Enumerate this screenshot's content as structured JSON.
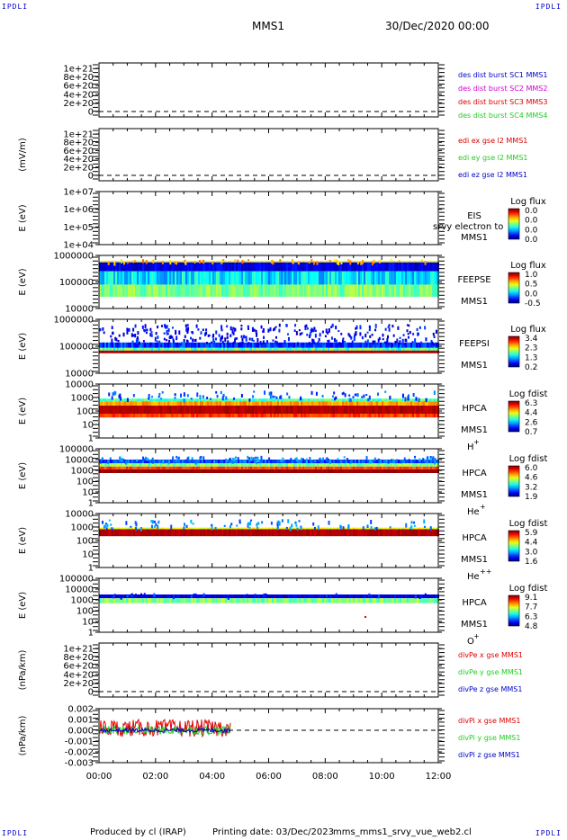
{
  "corners": {
    "tl": "IPDLI",
    "tr": "IPDLI",
    "bl": "IPDLI",
    "br": "IPDLI"
  },
  "header": {
    "spacecraft": "MMS1",
    "datetime": "30/Dec/2020 00:00"
  },
  "footer": {
    "producer": "Produced by cl (IRAP)",
    "printing": "Printing date: 03/Dec/2023",
    "script": "mms_mms1_srvy_vue_web2.cl"
  },
  "colors": {
    "blue": "#0000cc",
    "magenta": "#d000d0",
    "red": "#dd0000",
    "green": "#22cc22"
  },
  "chart_data": [
    {
      "id": "p1",
      "type": "line",
      "ylabel": "",
      "yticks": [
        "1e+21",
        "8e+20",
        "6e+20",
        "4e+20",
        "2e+20",
        "0"
      ],
      "dashed_zero": true,
      "legend": [
        {
          "text": "des dist burst SC1 MMS1",
          "color": "#0000cc"
        },
        {
          "text": "des dist burst SC2 MMS2",
          "color": "#d000d0"
        },
        {
          "text": "des dist burst SC3 MMS3",
          "color": "#dd0000"
        },
        {
          "text": "des dist burst SC4 MMS4",
          "color": "#22cc22"
        }
      ],
      "series": []
    },
    {
      "id": "p2",
      "type": "line",
      "ylabel": "(mV/m)",
      "yticks": [
        "1e+21",
        "8e+20",
        "6e+20",
        "4e+20",
        "2e+20",
        "0"
      ],
      "dashed_zero": true,
      "legend": [
        {
          "text": "edi ex gse l2 MMS1",
          "color": "#dd0000"
        },
        {
          "text": "edi ey gse l2 MMS1",
          "color": "#22cc22"
        },
        {
          "text": "edi ez gse l2 MMS1",
          "color": "#0000cc"
        }
      ],
      "series": []
    },
    {
      "id": "p3",
      "type": "heatmap",
      "ylabel": "E (eV)",
      "yticks": [
        "1e+07",
        "1e+06",
        "1e+05",
        "1e+04"
      ],
      "labels": [
        "EIS",
        "MMS1"
      ],
      "overlay": "srvy electron to",
      "cbar": {
        "title": "Log flux",
        "ticks": [
          "0.0",
          "0.0",
          "0.0",
          "0.0"
        ]
      },
      "fill": "none"
    },
    {
      "id": "p4",
      "type": "heatmap",
      "ylabel": "E (eV)",
      "yticks": [
        "1000000",
        "100000",
        "10000"
      ],
      "labels": [
        "FEEPSE",
        "MMS1"
      ],
      "cbar": {
        "title": "Log flux",
        "ticks": [
          "1.0",
          "0.5",
          "0.0",
          "-0.5"
        ]
      },
      "fill": "feeps_e"
    },
    {
      "id": "p5",
      "type": "heatmap",
      "ylabel": "E (eV)",
      "yticks": [
        "1000000",
        "100000",
        "10000"
      ],
      "labels": [
        "FEEPSI",
        "MMS1"
      ],
      "cbar": {
        "title": "Log flux",
        "ticks": [
          "3.4",
          "2.3",
          "1.3",
          "0.2"
        ]
      },
      "fill": "feeps_i"
    },
    {
      "id": "p6",
      "type": "heatmap",
      "ylabel": "E (eV)",
      "yticks": [
        "10000",
        "1000",
        "100",
        "10",
        "1"
      ],
      "labels": [
        "HPCA",
        "MMS1"
      ],
      "species": "H",
      "charge": "+",
      "cbar": {
        "title": "Log fdist",
        "ticks": [
          "6.3",
          "4.4",
          "2.6",
          "0.7"
        ]
      },
      "fill": "hpca_h"
    },
    {
      "id": "p7",
      "type": "heatmap",
      "ylabel": "E (eV)",
      "yticks": [
        "100000",
        "10000",
        "1000",
        "100",
        "10",
        "1"
      ],
      "labels": [
        "HPCA",
        "MMS1"
      ],
      "species": "He",
      "charge": "+",
      "cbar": {
        "title": "Log fdist",
        "ticks": [
          "6.0",
          "4.6",
          "3.2",
          "1.9"
        ]
      },
      "fill": "hpca_he"
    },
    {
      "id": "p8",
      "type": "heatmap",
      "ylabel": "E (eV)",
      "yticks": [
        "10000",
        "1000",
        "100",
        "10",
        "1"
      ],
      "labels": [
        "HPCA",
        "MMS1"
      ],
      "species": "He",
      "charge": "++",
      "cbar": {
        "title": "Log fdist",
        "ticks": [
          "5.9",
          "4.4",
          "3.0",
          "1.6"
        ]
      },
      "fill": "hpca_he2"
    },
    {
      "id": "p9",
      "type": "heatmap",
      "ylabel": "E (eV)",
      "yticks": [
        "100000",
        "10000",
        "1000",
        "100",
        "10",
        "1"
      ],
      "labels": [
        "HPCA",
        "MMS1"
      ],
      "species": "O",
      "charge": "+",
      "cbar": {
        "title": "Log fdist",
        "ticks": [
          "9.1",
          "7.7",
          "6.3",
          "4.8"
        ]
      },
      "fill": "hpca_o"
    },
    {
      "id": "p10",
      "type": "line",
      "ylabel": "(nPa/km)",
      "yticks": [
        "1e+21",
        "8e+20",
        "6e+20",
        "4e+20",
        "2e+20",
        "0"
      ],
      "dashed_zero": true,
      "legend": [
        {
          "text": "divPe x gse MMS1",
          "color": "#dd0000"
        },
        {
          "text": "divPe y gse MMS1",
          "color": "#22cc22"
        },
        {
          "text": "divPe z gse MMS1",
          "color": "#0000cc"
        }
      ],
      "series": []
    },
    {
      "id": "p11",
      "type": "line",
      "ylabel": "(nPa/km)",
      "yticks": [
        "0.002",
        "0.001",
        "0.000",
        "-0.001",
        "-0.002",
        "-0.003"
      ],
      "dashed_zero": true,
      "legend": [
        {
          "text": "divPi x gse MMS1",
          "color": "#dd0000"
        },
        {
          "text": "divPi y gse MMS1",
          "color": "#22cc22"
        },
        {
          "text": "divPi z gse MMS1",
          "color": "#0000cc"
        }
      ],
      "series": [
        {
          "name": "divPi x gse MMS1",
          "color": "#dd0000",
          "x": [
            "00:00",
            "04:40"
          ],
          "amp": 0.0008
        },
        {
          "name": "divPi y gse MMS1",
          "color": "#22cc22",
          "x": [
            "00:00",
            "04:40"
          ],
          "amp": 0.0004
        },
        {
          "name": "divPi z gse MMS1",
          "color": "#0000cc",
          "x": [
            "00:00",
            "04:40"
          ],
          "amp": 0.0002
        }
      ],
      "ylim": [
        -0.003,
        0.002
      ]
    }
  ],
  "xaxis": {
    "ticks": [
      "00:00",
      "02:00",
      "04:00",
      "06:00",
      "08:00",
      "10:00",
      "12:00"
    ]
  }
}
